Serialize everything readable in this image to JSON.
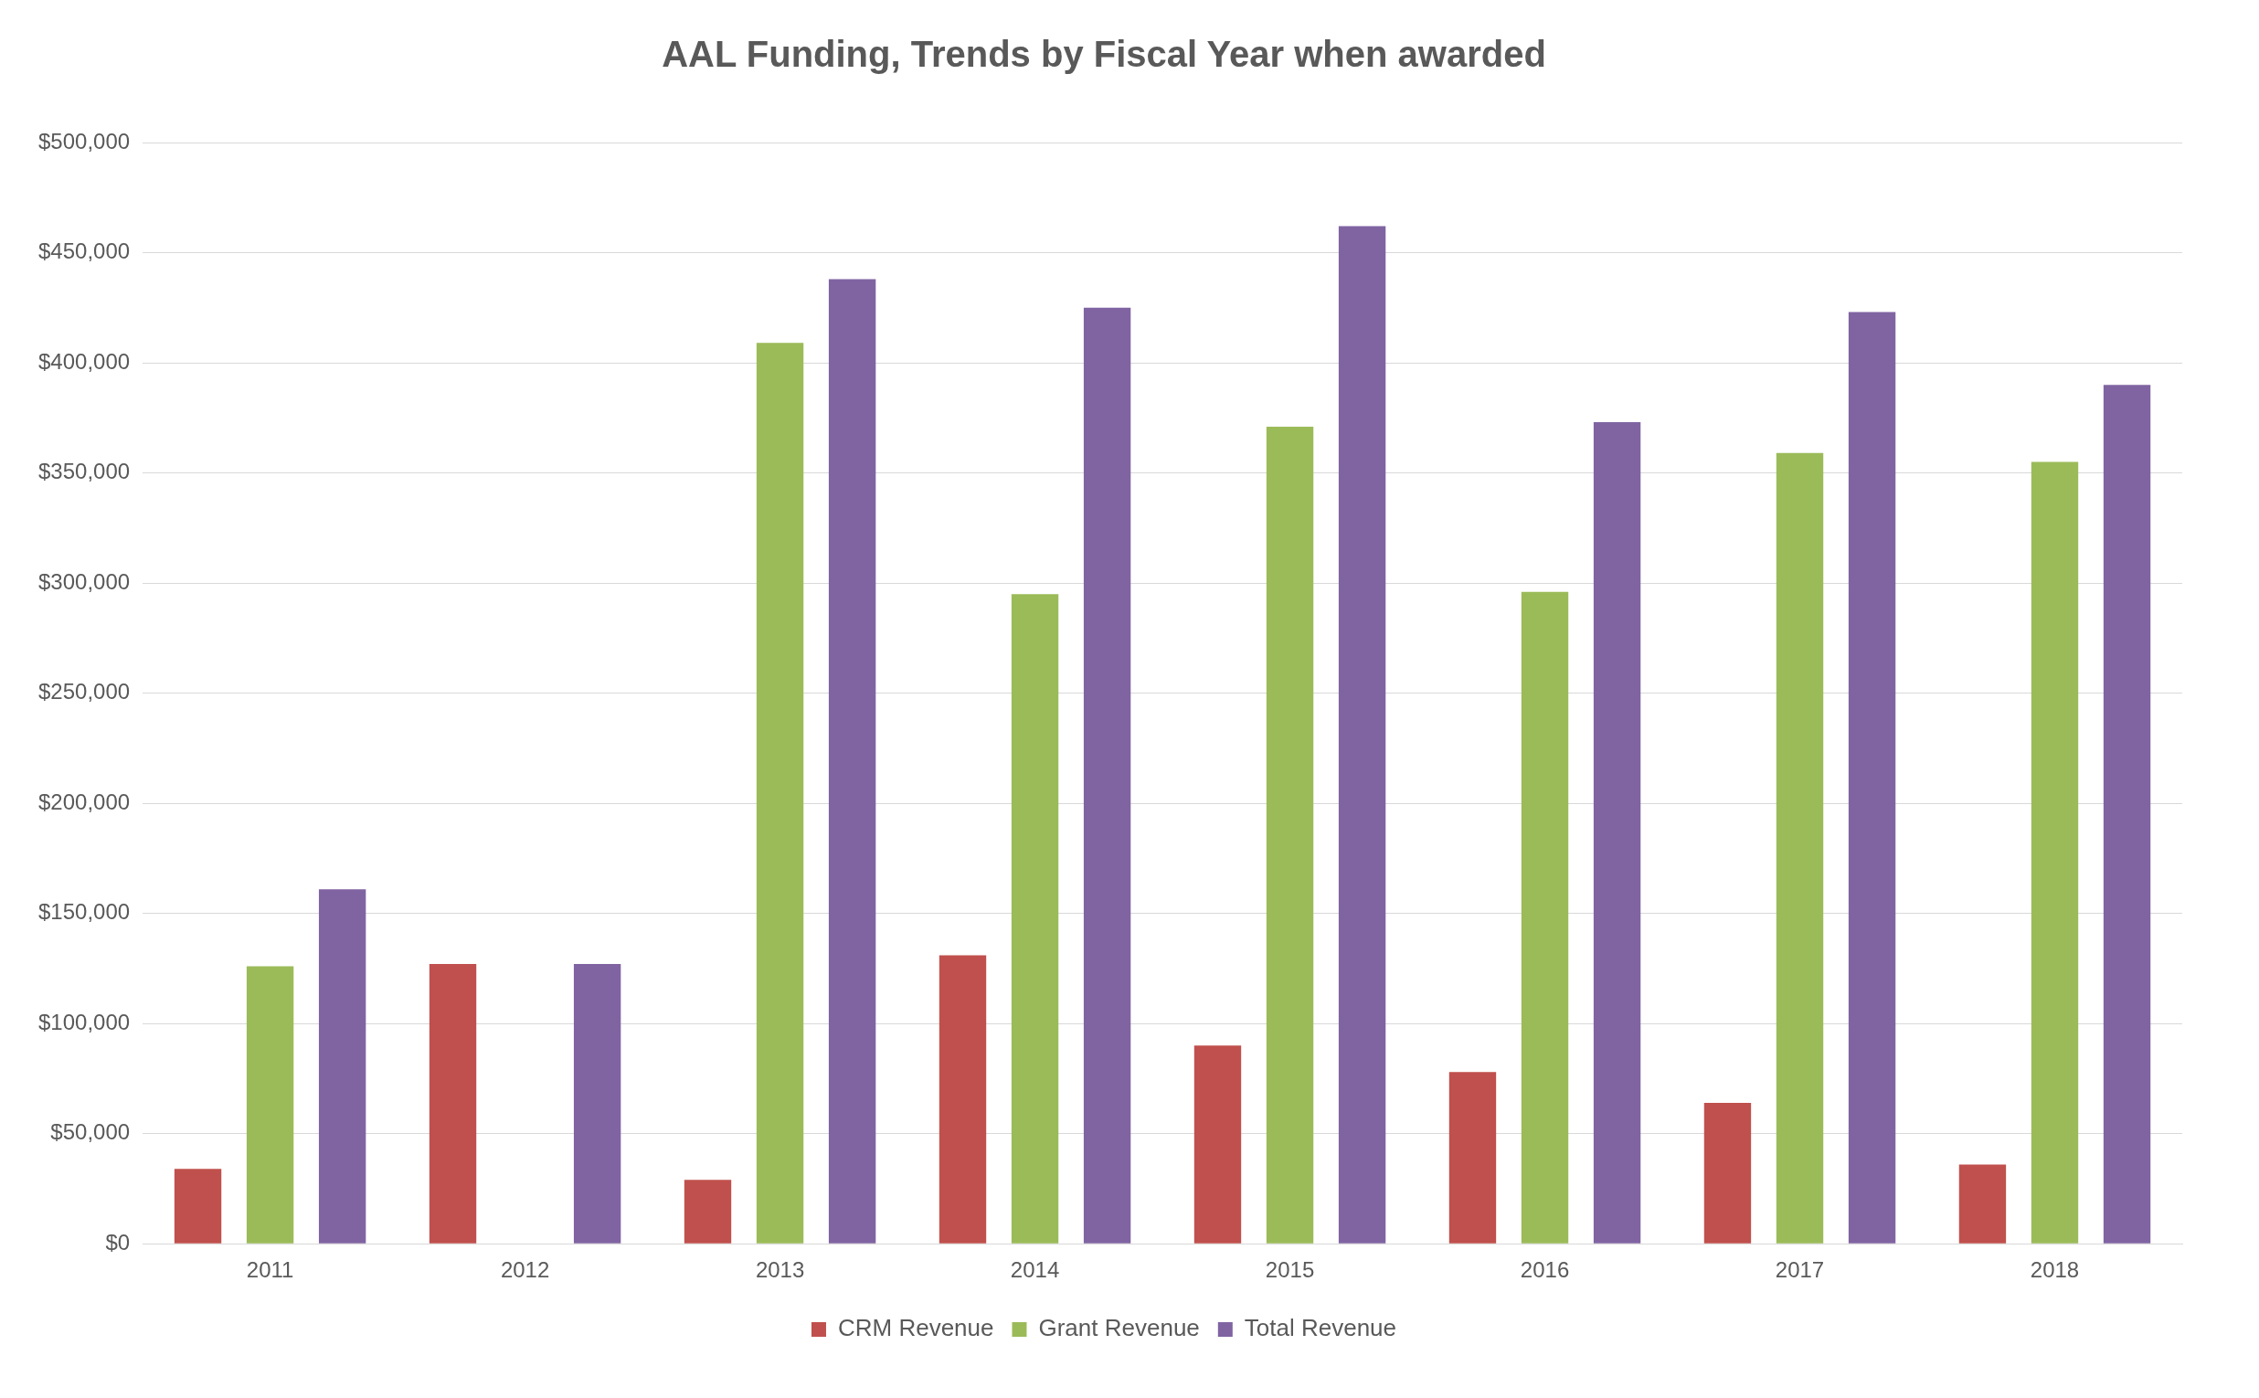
{
  "chart_data": {
    "type": "bar",
    "title": "AAL Funding, Trends by Fiscal Year when awarded",
    "categories": [
      "2011",
      "2012",
      "2013",
      "2014",
      "2015",
      "2016",
      "2017",
      "2018"
    ],
    "series": [
      {
        "name": "CRM Revenue",
        "color": "#c0504d",
        "values": [
          34000,
          127000,
          29000,
          131000,
          90000,
          78000,
          64000,
          36000
        ]
      },
      {
        "name": "Grant Revenue",
        "color": "#9bbb59",
        "values": [
          126000,
          0,
          409000,
          295000,
          371000,
          296000,
          359000,
          355000
        ]
      },
      {
        "name": "Total Revenue",
        "color": "#8064a2",
        "values": [
          161000,
          127000,
          438000,
          425000,
          462000,
          373000,
          423000,
          390000
        ]
      }
    ],
    "ylim": [
      0,
      500000
    ],
    "yticks": [
      {
        "value": 0,
        "label": "$0"
      },
      {
        "value": 50000,
        "label": "$50,000"
      },
      {
        "value": 100000,
        "label": "$100,000"
      },
      {
        "value": 150000,
        "label": "$150,000"
      },
      {
        "value": 200000,
        "label": "$200,000"
      },
      {
        "value": 250000,
        "label": "$250,000"
      },
      {
        "value": 300000,
        "label": "$300,000"
      },
      {
        "value": 350000,
        "label": "$350,000"
      },
      {
        "value": 400000,
        "label": "$400,000"
      },
      {
        "value": 450000,
        "label": "$450,000"
      },
      {
        "value": 500000,
        "label": "$500,000"
      }
    ],
    "grid": "y",
    "legend": "bottom"
  }
}
